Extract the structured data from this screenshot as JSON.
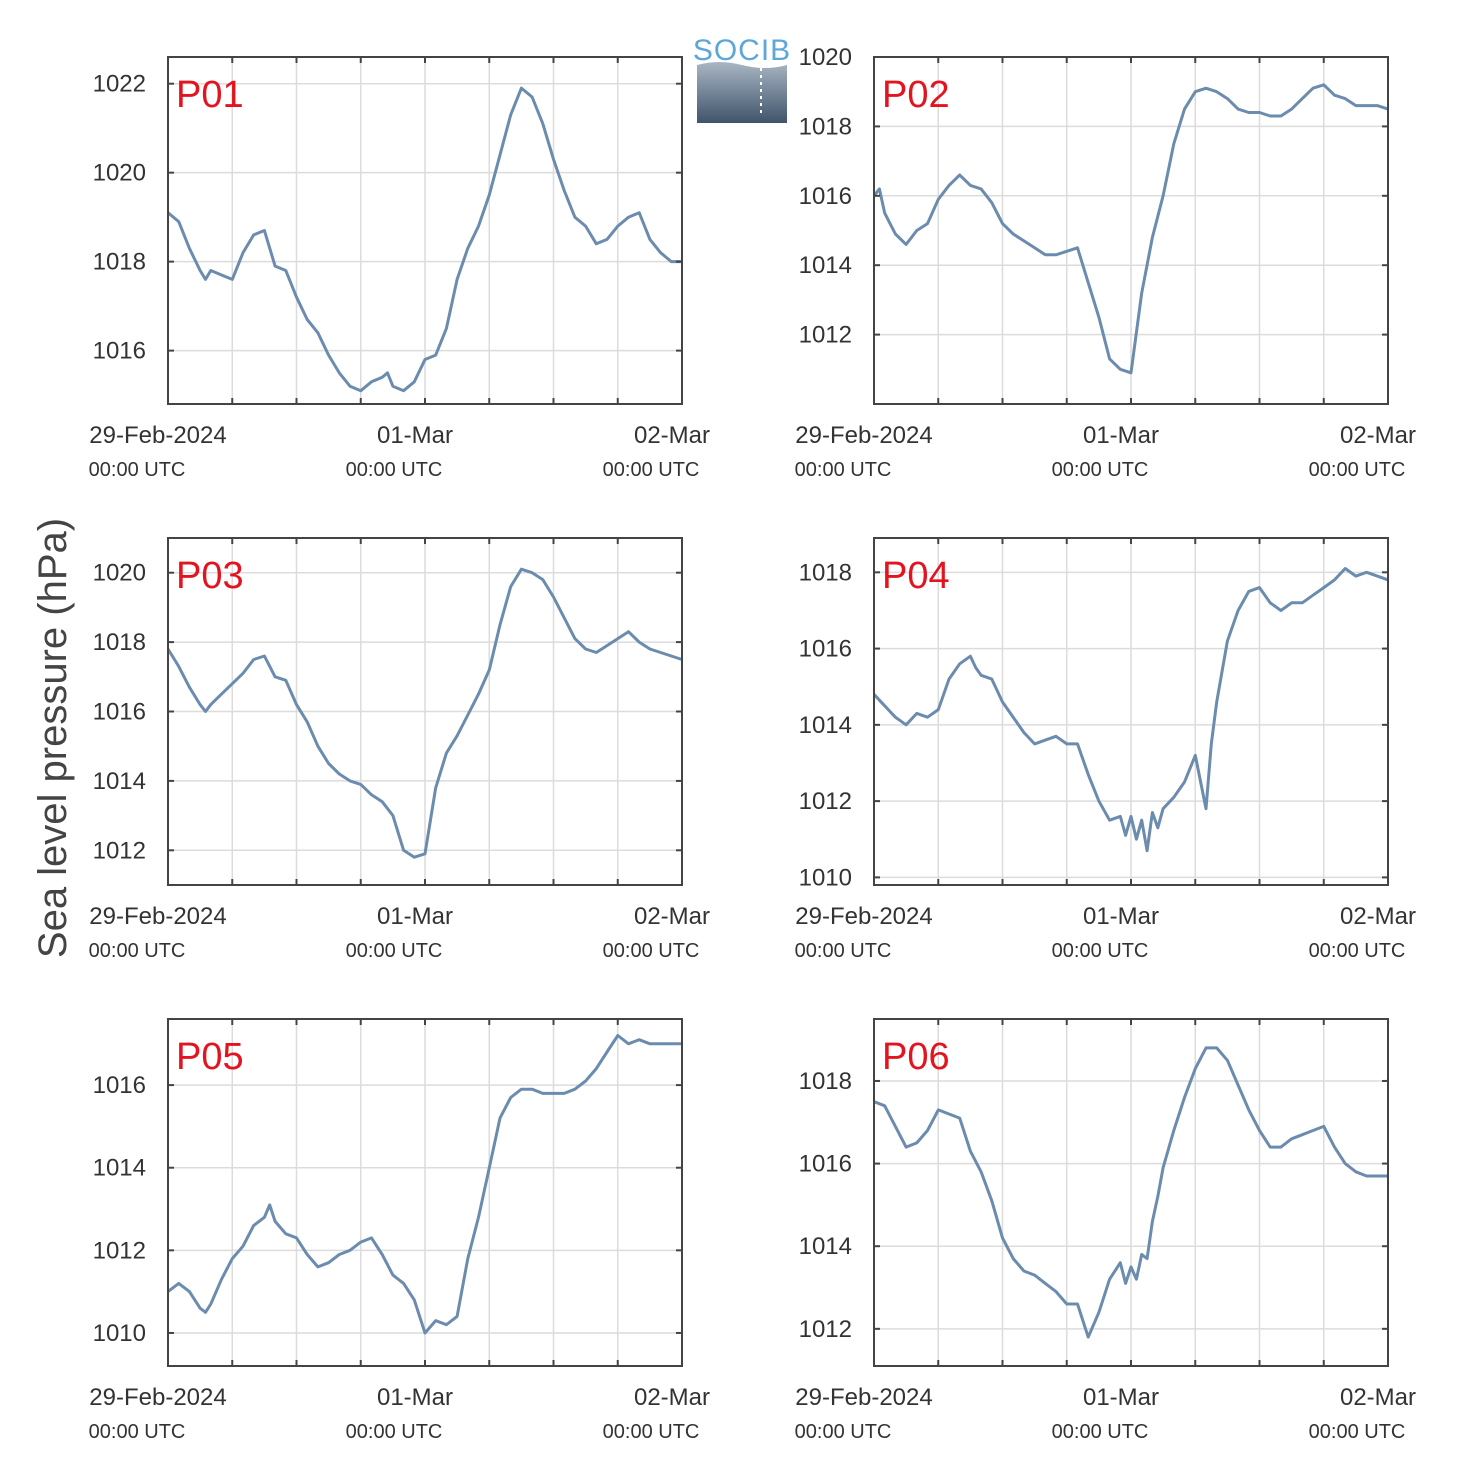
{
  "figure": {
    "ylabel": "Sea level pressure (hPa)",
    "logo_text": "SOCIB",
    "series_color": "#6b8cae"
  },
  "chart_data": [
    {
      "type": "line",
      "name": "P01",
      "ylim": [
        1014.8,
        1022.6
      ],
      "xlim": [
        0,
        48
      ],
      "yticks": [
        1016,
        1018,
        1020,
        1022
      ],
      "xticks": [
        {
          "x": 0,
          "label": "29-Feb-2024",
          "sub": "00:00 UTC"
        },
        {
          "x": 24,
          "label": "01-Mar",
          "sub": "00:00 UTC"
        },
        {
          "x": 48,
          "label": "02-Mar",
          "sub": "00:00 UTC"
        }
      ],
      "grid": true,
      "x": [
        0,
        1,
        2,
        3,
        3.5,
        4,
        5,
        6,
        7,
        8,
        9,
        10,
        11,
        12,
        13,
        14,
        15,
        16,
        17,
        18,
        19,
        20,
        20.5,
        21,
        22,
        23,
        24,
        25,
        26,
        27,
        28,
        29,
        30,
        31,
        32,
        33,
        34,
        35,
        36,
        37,
        38,
        39,
        40,
        41,
        42,
        43,
        44,
        45,
        46,
        47,
        48
      ],
      "y": [
        1019.1,
        1018.9,
        1018.3,
        1017.8,
        1017.6,
        1017.8,
        1017.7,
        1017.6,
        1018.2,
        1018.6,
        1018.7,
        1017.9,
        1017.8,
        1017.2,
        1016.7,
        1016.4,
        1015.9,
        1015.5,
        1015.2,
        1015.1,
        1015.3,
        1015.4,
        1015.5,
        1015.2,
        1015.1,
        1015.3,
        1015.8,
        1015.9,
        1016.5,
        1017.6,
        1018.3,
        1018.8,
        1019.5,
        1020.4,
        1021.3,
        1021.9,
        1021.7,
        1021.1,
        1020.3,
        1019.6,
        1019.0,
        1018.8,
        1018.4,
        1018.5,
        1018.8,
        1019.0,
        1019.1,
        1018.5,
        1018.2,
        1018.0,
        1018.0
      ]
    },
    {
      "type": "line",
      "name": "P02",
      "ylim": [
        1010.0,
        1020.0
      ],
      "xlim": [
        0,
        48
      ],
      "yticks": [
        1012,
        1014,
        1016,
        1018,
        1020
      ],
      "xticks": [
        {
          "x": 0,
          "label": "29-Feb-2024",
          "sub": "00:00 UTC"
        },
        {
          "x": 24,
          "label": "01-Mar",
          "sub": "00:00 UTC"
        },
        {
          "x": 48,
          "label": "02-Mar",
          "sub": "00:00 UTC"
        }
      ],
      "grid": true,
      "x": [
        0,
        0.5,
        1,
        2,
        3,
        4,
        5,
        6,
        7,
        8,
        9,
        10,
        11,
        12,
        13,
        14,
        15,
        16,
        17,
        18,
        19,
        20,
        21,
        22,
        23,
        24,
        25,
        26,
        27,
        28,
        29,
        30,
        31,
        32,
        33,
        34,
        35,
        36,
        37,
        38,
        39,
        40,
        41,
        42,
        43,
        44,
        45,
        46,
        47,
        48
      ],
      "y": [
        1016.0,
        1016.2,
        1015.5,
        1014.9,
        1014.6,
        1015.0,
        1015.2,
        1015.9,
        1016.3,
        1016.6,
        1016.3,
        1016.2,
        1015.8,
        1015.2,
        1014.9,
        1014.7,
        1014.5,
        1014.3,
        1014.3,
        1014.4,
        1014.5,
        1013.5,
        1012.5,
        1011.3,
        1011.0,
        1010.9,
        1013.2,
        1014.8,
        1016.0,
        1017.5,
        1018.5,
        1019.0,
        1019.1,
        1019.0,
        1018.8,
        1018.5,
        1018.4,
        1018.4,
        1018.3,
        1018.3,
        1018.5,
        1018.8,
        1019.1,
        1019.2,
        1018.9,
        1018.8,
        1018.6,
        1018.6,
        1018.6,
        1018.5
      ]
    },
    {
      "type": "line",
      "name": "P03",
      "ylim": [
        1011.0,
        1021.0
      ],
      "xlim": [
        0,
        48
      ],
      "yticks": [
        1012,
        1014,
        1016,
        1018,
        1020
      ],
      "xticks": [
        {
          "x": 0,
          "label": "29-Feb-2024",
          "sub": "00:00 UTC"
        },
        {
          "x": 24,
          "label": "01-Mar",
          "sub": "00:00 UTC"
        },
        {
          "x": 48,
          "label": "02-Mar",
          "sub": "00:00 UTC"
        }
      ],
      "grid": true,
      "x": [
        0,
        1,
        2,
        3,
        3.5,
        4,
        5,
        6,
        7,
        8,
        9,
        10,
        11,
        12,
        13,
        14,
        15,
        16,
        17,
        18,
        19,
        20,
        21,
        22,
        23,
        24,
        25,
        26,
        27,
        28,
        29,
        30,
        31,
        32,
        33,
        34,
        35,
        36,
        37,
        38,
        39,
        40,
        41,
        42,
        43,
        44,
        45,
        46,
        47,
        48
      ],
      "y": [
        1017.8,
        1017.3,
        1016.7,
        1016.2,
        1016.0,
        1016.2,
        1016.5,
        1016.8,
        1017.1,
        1017.5,
        1017.6,
        1017.0,
        1016.9,
        1016.2,
        1015.7,
        1015.0,
        1014.5,
        1014.2,
        1014.0,
        1013.9,
        1013.6,
        1013.4,
        1013.0,
        1012.0,
        1011.8,
        1011.9,
        1013.8,
        1014.8,
        1015.3,
        1015.9,
        1016.5,
        1017.2,
        1018.5,
        1019.6,
        1020.1,
        1020.0,
        1019.8,
        1019.3,
        1018.7,
        1018.1,
        1017.8,
        1017.7,
        1017.9,
        1018.1,
        1018.3,
        1018.0,
        1017.8,
        1017.7,
        1017.6,
        1017.5
      ]
    },
    {
      "type": "line",
      "name": "P04",
      "ylim": [
        1009.8,
        1018.9
      ],
      "xlim": [
        0,
        48
      ],
      "yticks": [
        1010,
        1012,
        1014,
        1016,
        1018
      ],
      "xticks": [
        {
          "x": 0,
          "label": "29-Feb-2024",
          "sub": "00:00 UTC"
        },
        {
          "x": 24,
          "label": "01-Mar",
          "sub": "00:00 UTC"
        },
        {
          "x": 48,
          "label": "02-Mar",
          "sub": "00:00 UTC"
        }
      ],
      "grid": true,
      "x": [
        0,
        1,
        2,
        3,
        4,
        5,
        6,
        7,
        8,
        9,
        9.5,
        10,
        11,
        12,
        13,
        14,
        15,
        16,
        17,
        18,
        19,
        20,
        21,
        22,
        23,
        23.5,
        24,
        24.5,
        25,
        25.5,
        26,
        26.5,
        27,
        28,
        29,
        30,
        31,
        31.5,
        32,
        33,
        34,
        35,
        36,
        37,
        38,
        39,
        40,
        41,
        42,
        43,
        44,
        45,
        46,
        47,
        48
      ],
      "y": [
        1014.8,
        1014.5,
        1014.2,
        1014.0,
        1014.3,
        1014.2,
        1014.4,
        1015.2,
        1015.6,
        1015.8,
        1015.5,
        1015.3,
        1015.2,
        1014.6,
        1014.2,
        1013.8,
        1013.5,
        1013.6,
        1013.7,
        1013.5,
        1013.5,
        1012.7,
        1012.0,
        1011.5,
        1011.6,
        1011.1,
        1011.6,
        1011.0,
        1011.5,
        1010.7,
        1011.7,
        1011.3,
        1011.8,
        1012.1,
        1012.5,
        1013.2,
        1011.8,
        1013.5,
        1014.6,
        1016.2,
        1017.0,
        1017.5,
        1017.6,
        1017.2,
        1017.0,
        1017.2,
        1017.2,
        1017.4,
        1017.6,
        1017.8,
        1018.1,
        1017.9,
        1018.0,
        1017.9,
        1017.8
      ]
    },
    {
      "type": "line",
      "name": "P05",
      "ylim": [
        1009.2,
        1017.6
      ],
      "xlim": [
        0,
        48
      ],
      "yticks": [
        1010,
        1012,
        1014,
        1016
      ],
      "xticks": [
        {
          "x": 0,
          "label": "29-Feb-2024",
          "sub": "00:00 UTC"
        },
        {
          "x": 24,
          "label": "01-Mar",
          "sub": "00:00 UTC"
        },
        {
          "x": 48,
          "label": "02-Mar",
          "sub": "00:00 UTC"
        }
      ],
      "grid": true,
      "x": [
        0,
        1,
        2,
        3,
        3.5,
        4,
        5,
        6,
        7,
        8,
        9,
        9.5,
        10,
        11,
        12,
        13,
        14,
        15,
        16,
        17,
        18,
        19,
        20,
        21,
        22,
        23,
        24,
        25,
        26,
        27,
        28,
        29,
        30,
        31,
        32,
        33,
        34,
        35,
        36,
        37,
        38,
        39,
        40,
        41,
        42,
        43,
        44,
        45,
        46,
        47,
        48
      ],
      "y": [
        1011.0,
        1011.2,
        1011.0,
        1010.6,
        1010.5,
        1010.7,
        1011.3,
        1011.8,
        1012.1,
        1012.6,
        1012.8,
        1013.1,
        1012.7,
        1012.4,
        1012.3,
        1011.9,
        1011.6,
        1011.7,
        1011.9,
        1012.0,
        1012.2,
        1012.3,
        1011.9,
        1011.4,
        1011.2,
        1010.8,
        1010.0,
        1010.3,
        1010.2,
        1010.4,
        1011.8,
        1012.8,
        1014.0,
        1015.2,
        1015.7,
        1015.9,
        1015.9,
        1015.8,
        1015.8,
        1015.8,
        1015.9,
        1016.1,
        1016.4,
        1016.8,
        1017.2,
        1017.0,
        1017.1,
        1017.0,
        1017.0,
        1017.0,
        1017.0
      ]
    },
    {
      "type": "line",
      "name": "P06",
      "ylim": [
        1011.1,
        1019.5
      ],
      "xlim": [
        0,
        48
      ],
      "yticks": [
        1012,
        1014,
        1016,
        1018
      ],
      "xticks": [
        {
          "x": 0,
          "label": "29-Feb-2024",
          "sub": "00:00 UTC"
        },
        {
          "x": 24,
          "label": "01-Mar",
          "sub": "00:00 UTC"
        },
        {
          "x": 48,
          "label": "02-Mar",
          "sub": "00:00 UTC"
        }
      ],
      "grid": true,
      "x": [
        0,
        1,
        2,
        3,
        4,
        5,
        6,
        7,
        8,
        9,
        10,
        11,
        12,
        13,
        14,
        15,
        16,
        17,
        18,
        19,
        20,
        21,
        22,
        23,
        23.5,
        24,
        24.5,
        25,
        25.5,
        26,
        26.5,
        27,
        28,
        29,
        30,
        31,
        32,
        33,
        34,
        35,
        36,
        37,
        38,
        39,
        40,
        41,
        42,
        43,
        44,
        45,
        46,
        47,
        48
      ],
      "y": [
        1017.5,
        1017.4,
        1016.9,
        1016.4,
        1016.5,
        1016.8,
        1017.3,
        1017.2,
        1017.1,
        1016.3,
        1015.8,
        1015.1,
        1014.2,
        1013.7,
        1013.4,
        1013.3,
        1013.1,
        1012.9,
        1012.6,
        1012.6,
        1011.8,
        1012.4,
        1013.2,
        1013.6,
        1013.1,
        1013.5,
        1013.2,
        1013.8,
        1013.7,
        1014.6,
        1015.2,
        1015.9,
        1016.8,
        1017.6,
        1018.3,
        1018.8,
        1018.8,
        1018.5,
        1017.9,
        1017.3,
        1016.8,
        1016.4,
        1016.4,
        1016.6,
        1016.7,
        1016.8,
        1016.9,
        1016.4,
        1016.0,
        1015.8,
        1015.7,
        1015.7,
        1015.7
      ]
    }
  ]
}
